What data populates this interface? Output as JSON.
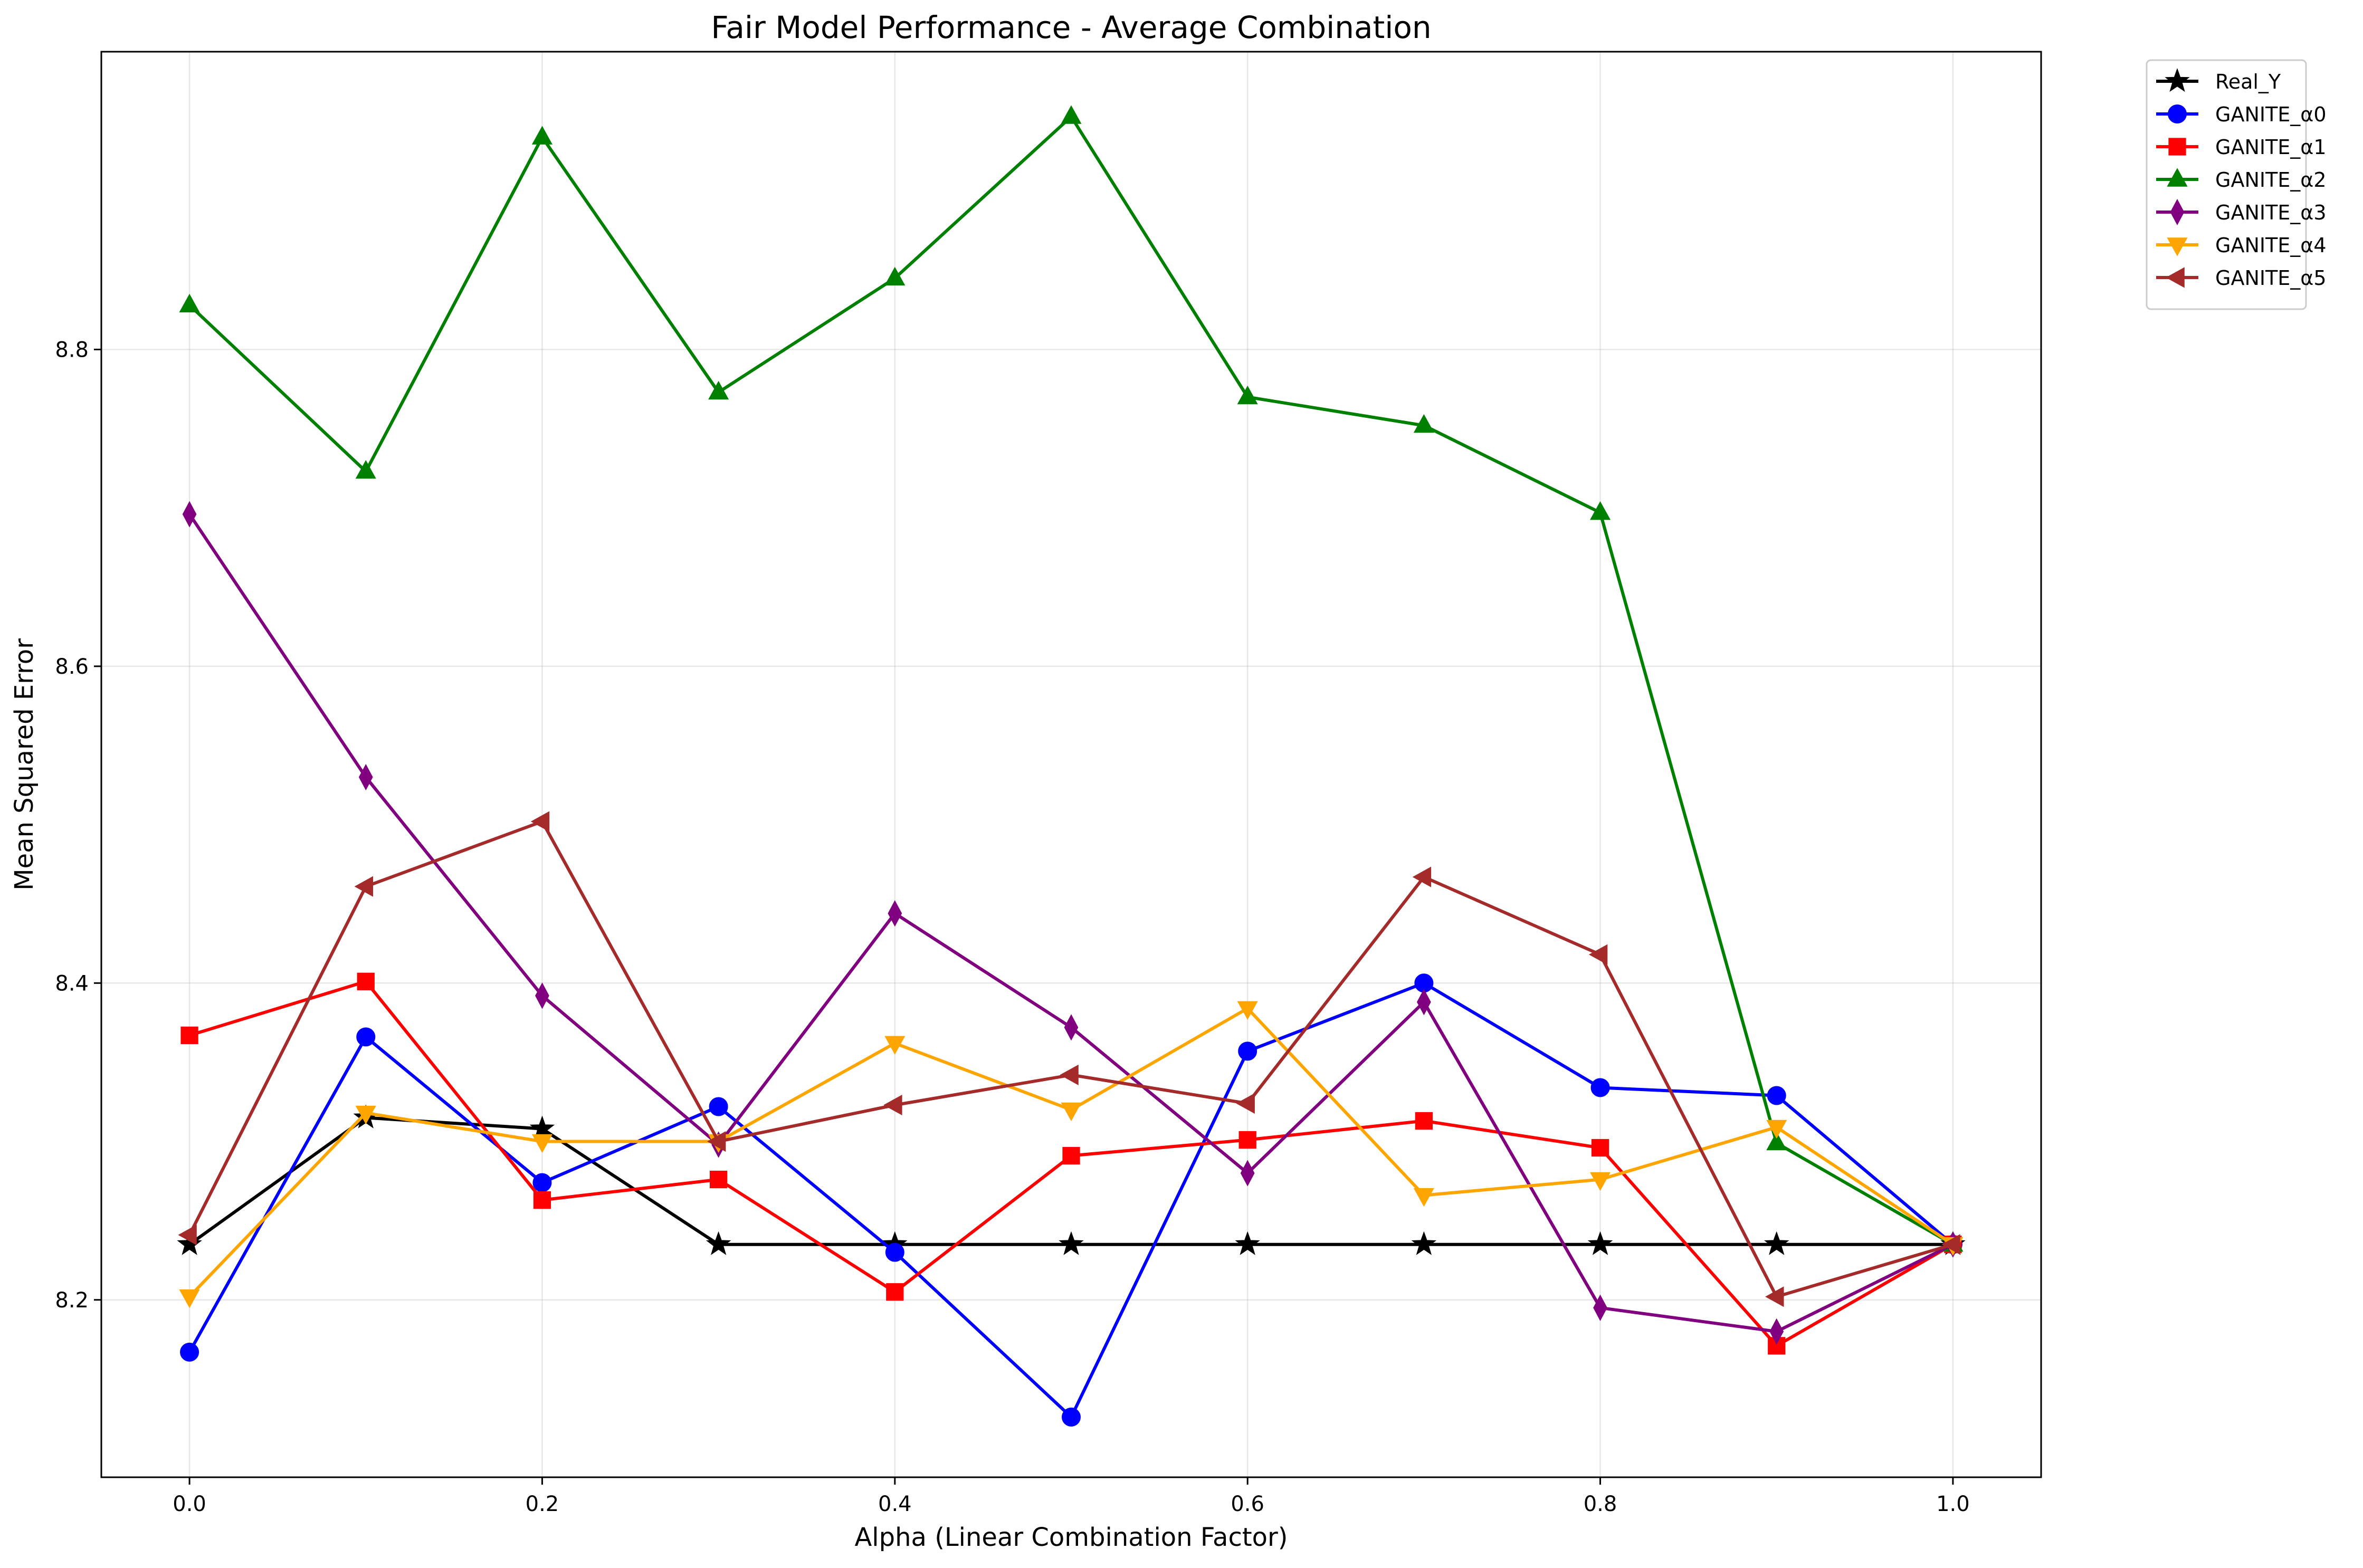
{
  "chart_data": {
    "type": "line",
    "title": "Fair Model Performance - Average Combination",
    "xlabel": "Alpha (Linear Combination Factor)",
    "ylabel": "Mean Squared Error",
    "xlim": [
      -0.05,
      1.05
    ],
    "ylim": [
      8.088,
      8.988
    ],
    "xticks": [
      0.0,
      0.2,
      0.4,
      0.6,
      0.8,
      1.0
    ],
    "xtick_labels": [
      "0.0",
      "0.2",
      "0.4",
      "0.6",
      "0.8",
      "1.0"
    ],
    "yticks": [
      8.2,
      8.4,
      8.6,
      8.8
    ],
    "ytick_labels": [
      "8.2",
      "8.4",
      "8.6",
      "8.8"
    ],
    "grid": true,
    "legend_position": "outside-top-right",
    "x": [
      0.0,
      0.1,
      0.2,
      0.3,
      0.4,
      0.5,
      0.6,
      0.7,
      0.8,
      0.9,
      1.0
    ],
    "series": [
      {
        "name": "Real_Y",
        "color": "#000000",
        "marker": "star",
        "values": [
          8.235,
          8.315,
          8.308,
          8.235,
          8.235,
          8.235,
          8.235,
          8.235,
          8.235,
          8.235,
          8.235
        ]
      },
      {
        "name": "GANITE_α0",
        "color": "#0000ff",
        "marker": "circle",
        "values": [
          8.167,
          8.366,
          8.274,
          8.322,
          8.23,
          8.126,
          8.357,
          8.4,
          8.334,
          8.329,
          8.235
        ]
      },
      {
        "name": "GANITE_α1",
        "color": "#ff0000",
        "marker": "square",
        "values": [
          8.367,
          8.401,
          8.263,
          8.276,
          8.205,
          8.291,
          8.301,
          8.313,
          8.296,
          8.171,
          8.235
        ]
      },
      {
        "name": "GANITE_α2",
        "color": "#008000",
        "marker": "triangle-up",
        "values": [
          8.828,
          8.723,
          8.934,
          8.773,
          8.845,
          8.947,
          8.77,
          8.752,
          8.697,
          8.299,
          8.235
        ]
      },
      {
        "name": "GANITE_α3",
        "color": "#800080",
        "marker": "diamond",
        "values": [
          8.696,
          8.53,
          8.392,
          8.298,
          8.444,
          8.372,
          8.28,
          8.388,
          8.195,
          8.18,
          8.235
        ]
      },
      {
        "name": "GANITE_α4",
        "color": "#ffa500",
        "marker": "triangle-down",
        "values": [
          8.202,
          8.318,
          8.3,
          8.3,
          8.362,
          8.32,
          8.384,
          8.266,
          8.276,
          8.309,
          8.235
        ]
      },
      {
        "name": "GANITE_α5",
        "color": "#a52a2a",
        "marker": "triangle-left",
        "values": [
          8.241,
          8.461,
          8.502,
          8.3,
          8.323,
          8.342,
          8.324,
          8.467,
          8.418,
          8.202,
          8.235
        ]
      }
    ]
  }
}
